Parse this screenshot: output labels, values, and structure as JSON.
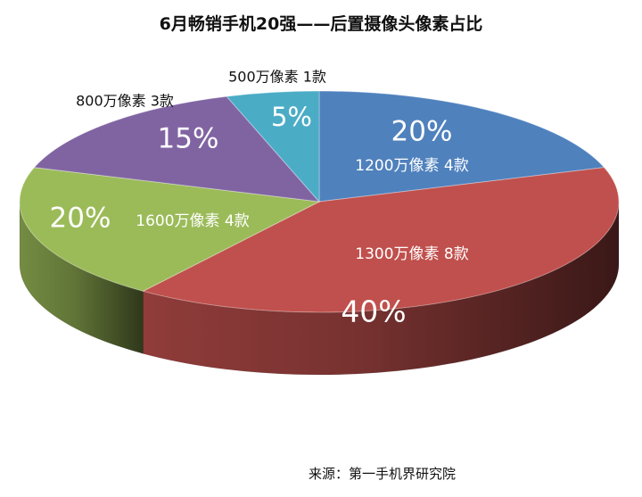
{
  "chart_data": {
    "type": "pie",
    "title": "6月畅销手机20强——后置摄像头像素占比",
    "source": "来源：第一手机界研究院",
    "slices": [
      {
        "label": "1200万像素",
        "count_label": "4款",
        "value": 20,
        "percent_label": "20%",
        "color": "#4f81bd"
      },
      {
        "label": "1300万像素",
        "count_label": "8款",
        "value": 40,
        "percent_label": "40%",
        "color": "#c0504d"
      },
      {
        "label": "1600万像素",
        "count_label": "4款",
        "value": 20,
        "percent_label": "20%",
        "color": "#9bbb59"
      },
      {
        "label": "800万像素",
        "count_label": "3款",
        "value": 15,
        "percent_label": "15%",
        "color": "#8064a2"
      },
      {
        "label": "500万像素",
        "count_label": "1款",
        "value": 5,
        "percent_label": "5%",
        "color": "#4bacc6"
      }
    ]
  }
}
